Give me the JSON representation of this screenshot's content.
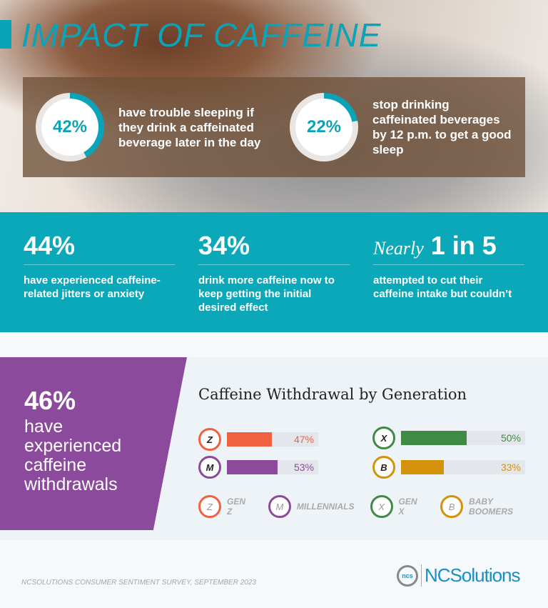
{
  "title": "IMPACT OF CAFFEINE",
  "top_stats": [
    {
      "value": "42%",
      "percent": 42,
      "text": "have trouble sleeping if they drink a caffeinated beverage later in the day"
    },
    {
      "value": "22%",
      "percent": 22,
      "text": "stop drinking caffeinated beverages by 12 p.m. to get a good sleep"
    }
  ],
  "band_stats": [
    {
      "prefix": "",
      "value": "44%",
      "text": "have experienced caffeine-related jitters or anxiety"
    },
    {
      "prefix": "",
      "value": "34%",
      "text": "drink more caffeine now to keep getting the initial desired effect"
    },
    {
      "prefix": "Nearly",
      "value": "1 in 5",
      "text": "attempted to cut their caffeine intake but couldn’t"
    }
  ],
  "withdrawal": {
    "value": "46%",
    "text": "have experienced caffeine withdrawals"
  },
  "chart_data": {
    "type": "bar",
    "title": "Caffeine Withdrawal by Generation",
    "unit": "%",
    "categories": [
      "Z",
      "M",
      "X",
      "B"
    ],
    "values": [
      47,
      53,
      50,
      33
    ],
    "labels": [
      "47%",
      "53%",
      "50%",
      "33%"
    ],
    "colors": [
      "#f0623f",
      "#8b4a9b",
      "#3f8a45",
      "#d4920a"
    ],
    "legend": [
      {
        "letter": "Z",
        "name": "GEN Z"
      },
      {
        "letter": "M",
        "name": "MILLENNIALS"
      },
      {
        "letter": "X",
        "name": "GEN X"
      },
      {
        "letter": "B",
        "name": "BABY BOOMERS"
      }
    ],
    "legend_placement": "bottom"
  },
  "footer": {
    "source": "NCSOLUTIONS CONSUMER SENTIMENT SURVEY, SEPTEMBER 2023",
    "logo_mark": "ncs",
    "logo_text": "NCSolutions"
  },
  "colors": {
    "teal": "#0aa8b9",
    "purple": "#8b4a9b"
  }
}
